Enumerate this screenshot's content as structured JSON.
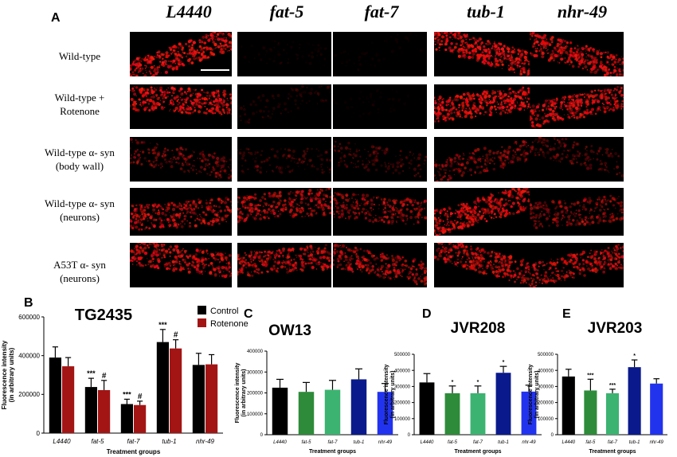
{
  "panel_a": {
    "letter": "A",
    "columns": [
      "L4440",
      "fat-5",
      "fat-7",
      "tub-1",
      "nhr-49"
    ],
    "rows": [
      {
        "line1": "Wild-type",
        "line2": ""
      },
      {
        "line1": "Wild-type +",
        "line2": "Rotenone"
      },
      {
        "line1": "Wild-type α- syn",
        "line2": "(body wall)"
      },
      {
        "line1": "Wild-type α- syn",
        "line2": "(neurons)"
      },
      {
        "line1": "A53T α- syn",
        "line2": "(neurons)"
      }
    ],
    "intensity": [
      [
        0.9,
        0.08,
        0.05,
        0.95,
        0.85
      ],
      [
        0.9,
        0.15,
        0.05,
        0.95,
        0.85
      ],
      [
        0.45,
        0.25,
        0.3,
        0.5,
        0.35
      ],
      [
        0.75,
        0.7,
        0.6,
        0.9,
        0.55
      ],
      [
        0.8,
        0.75,
        0.7,
        0.8,
        0.75
      ]
    ]
  },
  "chart_data": [
    {
      "panel": "B",
      "type": "bar",
      "title": "TG2435",
      "xlabel": "Treatment groups",
      "ylabel": "Fluorescence intensity\n(in arbitrary units)",
      "categories": [
        "L4440",
        "fat-5",
        "fat-7",
        "tub-1",
        "nhr-49"
      ],
      "ylim": [
        0,
        600000
      ],
      "yticks": [
        0,
        200000,
        400000,
        600000
      ],
      "series": [
        {
          "name": "Control",
          "color": "#000000",
          "values": [
            390000,
            238000,
            150000,
            470000,
            352000
          ],
          "errors": [
            55000,
            45000,
            25000,
            65000,
            60000
          ]
        },
        {
          "name": "Rotenone",
          "color": "#a31515",
          "values": [
            345000,
            222000,
            145000,
            437000,
            355000
          ],
          "errors": [
            45000,
            50000,
            20000,
            45000,
            50000
          ]
        }
      ],
      "annotations": [
        {
          "series": 0,
          "index": 1,
          "text": "***"
        },
        {
          "series": 1,
          "index": 1,
          "text": "#"
        },
        {
          "series": 0,
          "index": 2,
          "text": "***"
        },
        {
          "series": 1,
          "index": 2,
          "text": "#"
        },
        {
          "series": 0,
          "index": 3,
          "text": "***"
        },
        {
          "series": 1,
          "index": 3,
          "text": "#"
        }
      ],
      "legend": "top-right"
    },
    {
      "panel": "C",
      "type": "bar",
      "title": "OW13",
      "xlabel": "Treatment groups",
      "ylabel": "Fluorescence intensity\n(in arbitrary units)",
      "categories": [
        "L4440",
        "fat-5",
        "fat-7",
        "tub-1",
        "nhr-49"
      ],
      "ylim": [
        0,
        400000
      ],
      "yticks": [
        0,
        100000,
        200000,
        300000,
        400000
      ],
      "series": [
        {
          "values": [
            225000,
            205000,
            215000,
            265000,
            205000
          ],
          "errors": [
            40000,
            45000,
            45000,
            50000,
            40000
          ]
        }
      ],
      "colors": [
        "#000000",
        "#2e8b3a",
        "#3cb371",
        "#0a1a8c",
        "#2233ee"
      ],
      "annotations": []
    },
    {
      "panel": "D",
      "type": "bar",
      "title": "JVR208",
      "xlabel": "Treatment groups",
      "ylabel": "Fluorescence intensity\n(in arbitrary units)",
      "categories": [
        "L4440",
        "fat-5",
        "fat-7",
        "tub-1",
        "nhr-49"
      ],
      "ylim": [
        0,
        500000
      ],
      "yticks": [
        0,
        100000,
        200000,
        300000,
        400000,
        500000
      ],
      "series": [
        {
          "values": [
            325000,
            258000,
            258000,
            385000,
            268000
          ],
          "errors": [
            55000,
            45000,
            45000,
            40000,
            40000
          ]
        }
      ],
      "colors": [
        "#000000",
        "#2e8b3a",
        "#3cb371",
        "#0a1a8c",
        "#2233ee"
      ],
      "annotations": [
        {
          "series": 0,
          "index": 1,
          "text": "*"
        },
        {
          "series": 0,
          "index": 2,
          "text": "*"
        },
        {
          "series": 0,
          "index": 3,
          "text": "*"
        }
      ]
    },
    {
      "panel": "E",
      "type": "bar",
      "title": "JVR203",
      "xlabel": "Treatment groups",
      "ylabel": "Fluorescence intensity\n(in arbitrary units)",
      "categories": [
        "L4440",
        "fat-5",
        "fat-7",
        "tub-1",
        "nhr-49"
      ],
      "ylim": [
        0,
        500000
      ],
      "yticks": [
        0,
        100000,
        200000,
        300000,
        400000,
        500000
      ],
      "series": [
        {
          "values": [
            362000,
            275000,
            258000,
            420000,
            318000
          ],
          "errors": [
            45000,
            70000,
            25000,
            45000,
            30000
          ]
        }
      ],
      "colors": [
        "#000000",
        "#2e8b3a",
        "#3cb371",
        "#0a1a8c",
        "#2233ee"
      ],
      "annotations": [
        {
          "series": 0,
          "index": 1,
          "text": "***"
        },
        {
          "series": 0,
          "index": 2,
          "text": "***"
        },
        {
          "series": 0,
          "index": 3,
          "text": "*"
        }
      ]
    }
  ]
}
